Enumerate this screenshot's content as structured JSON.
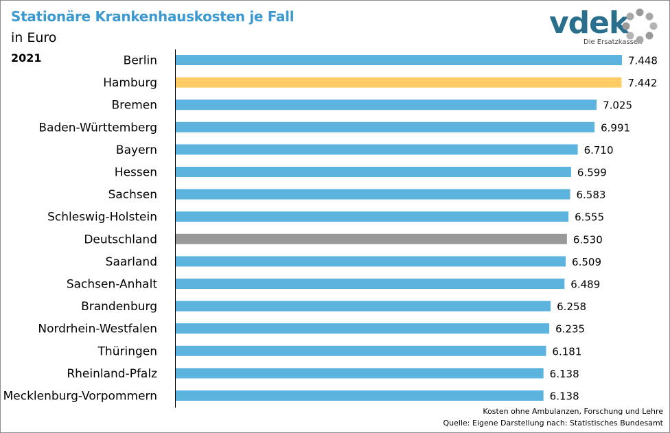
{
  "header": {
    "title": "Stationäre Krankenhauskosten je Fall",
    "subtitle": "in Euro",
    "year": "2021"
  },
  "logo": {
    "word": "vdek",
    "tagline": "Die Ersatzkassen",
    "icon": "dotted-ring-icon"
  },
  "colors": {
    "default_bar": "#5bb3de",
    "highlight_bar": "#ffcc66",
    "reference_bar": "#999999",
    "title": "#3d9ad1"
  },
  "footer": {
    "note": "Kosten ohne Ambulanzen, Forschung und Lehre",
    "source": "Quelle: Eigene Darstellung nach: Statistisches Bundesamt"
  },
  "chart_data": {
    "type": "bar",
    "orientation": "horizontal",
    "title": "Stationäre Krankenhauskosten je Fall",
    "xlim": [
      0,
      7448
    ],
    "grid": false,
    "categories": [
      "Berlin",
      "Hamburg",
      "Bremen",
      "Baden-Württemberg",
      "Bayern",
      "Hessen",
      "Sachsen",
      "Schleswig-Holstein",
      "Deutschland",
      "Saarland",
      "Sachsen-Anhalt",
      "Brandenburg",
      "Nordrhein-Westfalen",
      "Thüringen",
      "Rheinland-Pfalz",
      "Mecklenburg-Vorpommern"
    ],
    "values": [
      7448,
      7442,
      7025,
      6991,
      6710,
      6599,
      6583,
      6555,
      6530,
      6509,
      6489,
      6258,
      6235,
      6181,
      6138,
      6138
    ],
    "value_labels": [
      "7.448",
      "7.442",
      "7.025",
      "6.991",
      "6.710",
      "6.599",
      "6.583",
      "6.555",
      "6.530",
      "6.509",
      "6.489",
      "6.258",
      "6.235",
      "6.181",
      "6.138",
      "6.138"
    ],
    "highlight": {
      "Hamburg": "highlight",
      "Deutschland": "reference"
    }
  }
}
